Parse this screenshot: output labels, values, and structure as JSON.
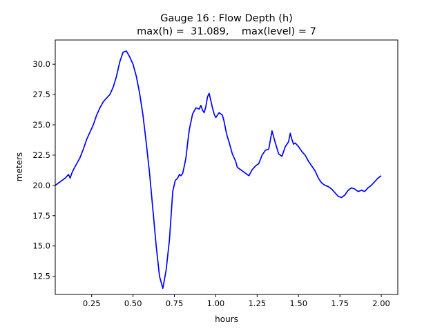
{
  "chart_data": {
    "type": "line",
    "title_line1": "Gauge 16 : Flow Depth (h)",
    "title_line2": "max(h) =  31.089,    max(level) = 7",
    "xlabel": "hours",
    "ylabel": "meters",
    "xlim": [
      0.03,
      2.1
    ],
    "ylim": [
      11.0,
      32.0
    ],
    "grid": false,
    "line_color": "#0000ff",
    "xticks": [
      {
        "value": 0.25,
        "label": "0.25"
      },
      {
        "value": 0.5,
        "label": "0.50"
      },
      {
        "value": 0.75,
        "label": "0.75"
      },
      {
        "value": 1.0,
        "label": "1.00"
      },
      {
        "value": 1.25,
        "label": "1.25"
      },
      {
        "value": 1.5,
        "label": "1.50"
      },
      {
        "value": 1.75,
        "label": "1.75"
      },
      {
        "value": 2.0,
        "label": "2.00"
      }
    ],
    "yticks": [
      {
        "value": 12.5,
        "label": "12.5"
      },
      {
        "value": 15.0,
        "label": "15.0"
      },
      {
        "value": 17.5,
        "label": "17.5"
      },
      {
        "value": 20.0,
        "label": "20.0"
      },
      {
        "value": 22.5,
        "label": "22.5"
      },
      {
        "value": 25.0,
        "label": "25.0"
      },
      {
        "value": 27.5,
        "label": "27.5"
      },
      {
        "value": 30.0,
        "label": "30.0"
      }
    ],
    "series": [
      {
        "x": [
          0.03,
          0.06,
          0.09,
          0.11,
          0.12,
          0.13,
          0.14,
          0.16,
          0.18,
          0.2,
          0.22,
          0.24,
          0.26,
          0.28,
          0.3,
          0.32,
          0.34,
          0.36,
          0.38,
          0.4,
          0.42,
          0.44,
          0.46,
          0.48,
          0.5,
          0.52,
          0.54,
          0.56,
          0.58,
          0.6,
          0.62,
          0.64,
          0.66,
          0.68,
          0.7,
          0.72,
          0.74,
          0.755,
          0.77,
          0.78,
          0.79,
          0.8,
          0.81,
          0.82,
          0.83,
          0.84,
          0.86,
          0.88,
          0.9,
          0.91,
          0.92,
          0.93,
          0.94,
          0.95,
          0.96,
          0.97,
          0.98,
          0.99,
          1.0,
          1.02,
          1.04,
          1.05,
          1.06,
          1.07,
          1.08,
          1.1,
          1.12,
          1.13,
          1.14,
          1.15,
          1.16,
          1.18,
          1.2,
          1.22,
          1.24,
          1.26,
          1.28,
          1.3,
          1.32,
          1.34,
          1.36,
          1.38,
          1.4,
          1.42,
          1.44,
          1.45,
          1.46,
          1.47,
          1.48,
          1.5,
          1.52,
          1.54,
          1.56,
          1.58,
          1.6,
          1.62,
          1.64,
          1.66,
          1.68,
          1.7,
          1.72,
          1.74,
          1.76,
          1.78,
          1.8,
          1.82,
          1.84,
          1.86,
          1.88,
          1.9,
          1.92,
          1.94,
          1.96,
          1.98,
          2.0
        ],
        "values": [
          20.0,
          20.3,
          20.6,
          20.9,
          20.6,
          21.0,
          21.3,
          21.8,
          22.3,
          23.0,
          23.8,
          24.4,
          25.0,
          25.8,
          26.4,
          26.9,
          27.2,
          27.5,
          28.1,
          29.0,
          30.2,
          31.0,
          31.089,
          30.6,
          30.0,
          29.0,
          27.6,
          25.8,
          23.5,
          21.0,
          18.0,
          15.0,
          12.5,
          11.5,
          13.0,
          15.5,
          19.5,
          20.4,
          20.6,
          20.9,
          20.8,
          21.0,
          21.6,
          22.3,
          23.5,
          24.6,
          25.9,
          26.4,
          26.3,
          26.6,
          26.2,
          26.0,
          26.5,
          27.3,
          27.6,
          27.0,
          26.4,
          25.9,
          25.6,
          26.0,
          25.8,
          25.3,
          24.6,
          24.0,
          23.6,
          22.6,
          22.0,
          21.5,
          21.4,
          21.3,
          21.2,
          21.0,
          20.8,
          21.3,
          21.6,
          21.8,
          22.5,
          22.9,
          23.0,
          24.5,
          23.5,
          22.6,
          22.4,
          23.2,
          23.6,
          24.3,
          23.8,
          23.4,
          23.5,
          23.2,
          22.8,
          22.5,
          22.0,
          21.6,
          21.2,
          20.6,
          20.2,
          20.0,
          19.9,
          19.7,
          19.4,
          19.1,
          19.0,
          19.2,
          19.6,
          19.8,
          19.7,
          19.5,
          19.6,
          19.5,
          19.8,
          20.0,
          20.3,
          20.6,
          20.8
        ]
      }
    ]
  }
}
